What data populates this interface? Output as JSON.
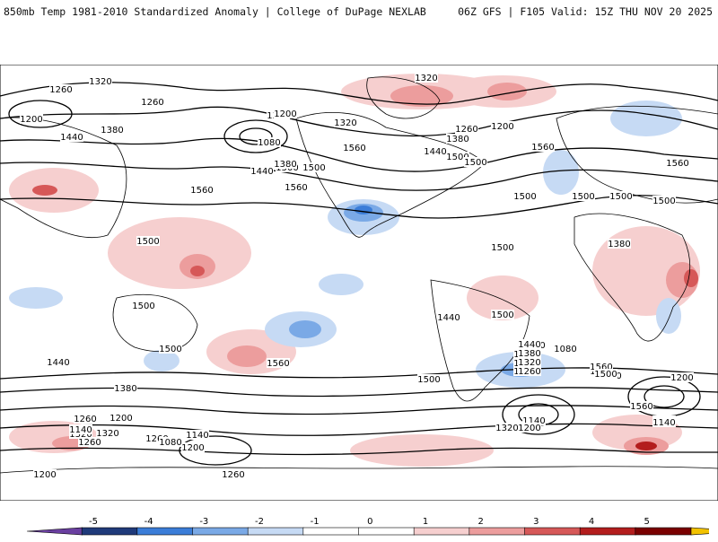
{
  "header": {
    "left": "850mb Temp 1981-2010 Standardized Anomaly | College of DuPage NEXLAB",
    "right": "06Z GFS | F105 Valid: 15Z THU NOV 20 2025"
  },
  "map": {
    "contour_labels": [
      "1320",
      "1260",
      "1200",
      "1260",
      "1440",
      "1380",
      "1320",
      "1500",
      "1560",
      "1200",
      "1080",
      "1380",
      "1440",
      "1500",
      "1560",
      "1500",
      "1320",
      "1260",
      "1200",
      "1320",
      "1380",
      "1440",
      "1500",
      "1560",
      "1500",
      "1500",
      "1560",
      "1500",
      "1440",
      "1380",
      "1320",
      "1260",
      "1200",
      "1140",
      "1080",
      "1200",
      "1260",
      "1320",
      "1380",
      "1440",
      "1500",
      "1560",
      "1500",
      "1380",
      "1260",
      "1080",
      "1140",
      "1200",
      "1560",
      "1440",
      "1380",
      "1320",
      "1260",
      "1560",
      "1500",
      "1200",
      "1140",
      "1260",
      "1320",
      "1440",
      "1380",
      "1500",
      "1200",
      "1140",
      "1080",
      "1320",
      "1260",
      "1200",
      "1140",
      "1200",
      "1260",
      "1500",
      "1500",
      "1560",
      "1500",
      "1500"
    ],
    "colors": {
      "neg5": "#6a3fa0",
      "neg4": "#1f3a7a",
      "neg3": "#3b7dd8",
      "neg2": "#7aa9e6",
      "neg1": "#c6daf4",
      "pos1": "#f6cfcf",
      "pos2": "#ec9d9d",
      "pos3": "#d65858",
      "pos4": "#b31d1d",
      "pos5": "#7a0000",
      "pos6": "#f2c200",
      "contour": "#000000",
      "coast": "#000000"
    }
  },
  "legend": {
    "ticks": [
      "-5",
      "-4",
      "-3",
      "-2",
      "-1",
      "0",
      "1",
      "2",
      "3",
      "4",
      "5"
    ]
  }
}
